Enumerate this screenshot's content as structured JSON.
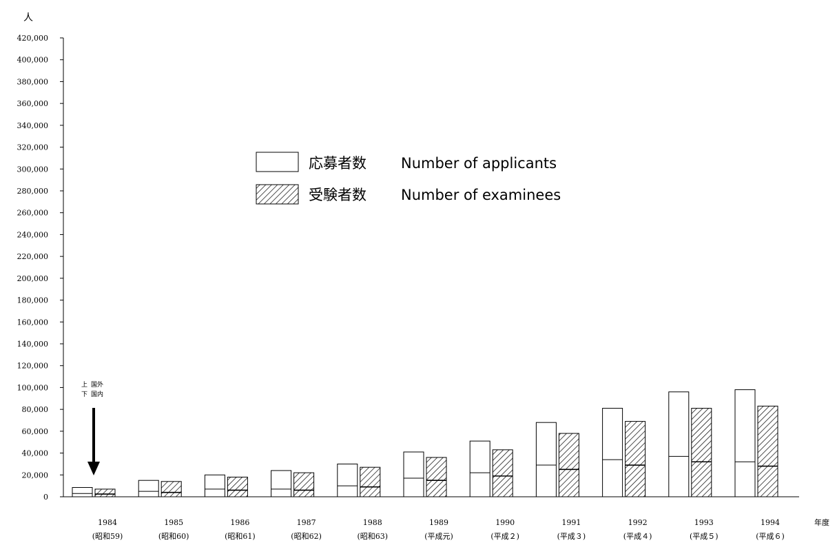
{
  "chart_data": {
    "type": "bar",
    "y_unit_label": "人",
    "x_unit_label": "年度",
    "ylim": [
      0,
      420000
    ],
    "ytick_step": 20000,
    "y_tick_labels": [
      "0",
      "20,000",
      "40,000",
      "60,000",
      "80,000",
      "100,000",
      "120,000",
      "140,000",
      "160,000",
      "180,000",
      "200,000",
      "220,000",
      "240,000",
      "260,000",
      "280,000",
      "300,000",
      "320,000",
      "340,000",
      "360,000",
      "380,000",
      "400,000",
      "420,000"
    ],
    "categories": [
      "1984",
      "1985",
      "1986",
      "1987",
      "1988",
      "1989",
      "1990",
      "1991",
      "1992",
      "1993",
      "1994"
    ],
    "categories_era": [
      "(昭和59)",
      "(昭和60)",
      "(昭和61)",
      "(昭和62)",
      "(昭和63)",
      "(平成元)",
      "(平成２)",
      "(平成３)",
      "(平成４)",
      "(平成５)",
      "(平成６)"
    ],
    "legend": [
      {
        "label_ja": "応募者数",
        "label_en": "Number of applicants",
        "pattern": "plain"
      },
      {
        "label_ja": "受験者数",
        "label_en": "Number of examinees",
        "pattern": "hatched"
      }
    ],
    "annotation": {
      "upper_marker": "上",
      "upper_label": "国外",
      "lower_marker": "下",
      "lower_label": "国内"
    },
    "series": [
      {
        "name": "応募者数 Number of applicants",
        "total": [
          8500,
          15000,
          20000,
          24000,
          30000,
          41000,
          51000,
          68000,
          81000,
          96000,
          98000
        ],
        "domestic": [
          3000,
          5000,
          7000,
          7000,
          10000,
          17000,
          22000,
          29000,
          34000,
          37000,
          32000
        ]
      },
      {
        "name": "受験者数 Number of examinees",
        "total": [
          7000,
          14000,
          18000,
          22000,
          27000,
          36000,
          43000,
          58000,
          69000,
          81000,
          83000
        ],
        "domestic": [
          2500,
          4000,
          6000,
          6000,
          9000,
          15000,
          19000,
          25000,
          29000,
          32000,
          28000
        ]
      }
    ],
    "grid": false,
    "legend_position": "center-top"
  }
}
